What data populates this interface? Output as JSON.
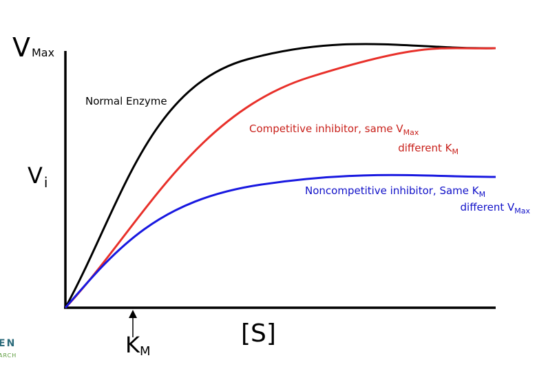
{
  "axes": {
    "y_top": {
      "main": "V",
      "sub": "Max"
    },
    "y_mid": {
      "main": "V",
      "sub": "i"
    },
    "x_label": "[S]",
    "x_marker": {
      "main": "K",
      "sub": "M"
    }
  },
  "curves": [
    {
      "lines": [
        {
          "text": "Normal Enzyme"
        }
      ]
    },
    {
      "lines": [
        {
          "text": "Competitive inhibitor,  same V",
          "sub": "Max"
        },
        {
          "text": "different K",
          "sub": "M"
        }
      ]
    },
    {
      "lines": [
        {
          "text": "Noncompetitive inhibitor,  Same K",
          "sub": "M"
        },
        {
          "text": "different V",
          "sub": "Max"
        }
      ]
    }
  ],
  "logo": [
    "EN",
    "ARCH"
  ]
}
